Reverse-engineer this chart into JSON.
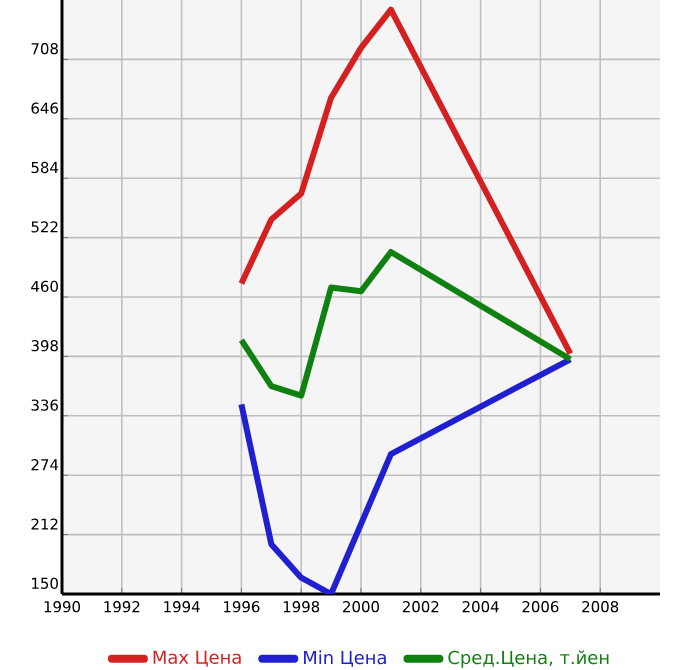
{
  "chart_data": {
    "type": "line",
    "xlim": [
      1990,
      2010
    ],
    "ylim": [
      150,
      770
    ],
    "xticks": [
      1990,
      1992,
      1994,
      1996,
      1998,
      2000,
      2002,
      2004,
      2006,
      2008
    ],
    "yticks": [
      150,
      212,
      274,
      336,
      398,
      460,
      522,
      584,
      646,
      708
    ],
    "grid": true,
    "legend": "bottom",
    "marker": "none",
    "line_style": "solid",
    "series": [
      {
        "name": "Max Цена",
        "color": "#d42020",
        "x": [
          1996,
          1997,
          1998,
          1999,
          2000,
          2001,
          2007
        ],
        "values": [
          474,
          541,
          568,
          668,
          720,
          760,
          401
        ]
      },
      {
        "name": "Min Цена",
        "color": "#2020d0",
        "x": [
          1996,
          1997,
          1998,
          1999,
          2001,
          2007
        ],
        "values": [
          348,
          202,
          167,
          150,
          296,
          395
        ]
      },
      {
        "name": "Сред.Цена, т.йен",
        "color": "#108010",
        "x": [
          1996,
          1997,
          1998,
          1999,
          2000,
          2001,
          2007
        ],
        "values": [
          415,
          367,
          357,
          470,
          466,
          507,
          395
        ]
      }
    ]
  }
}
